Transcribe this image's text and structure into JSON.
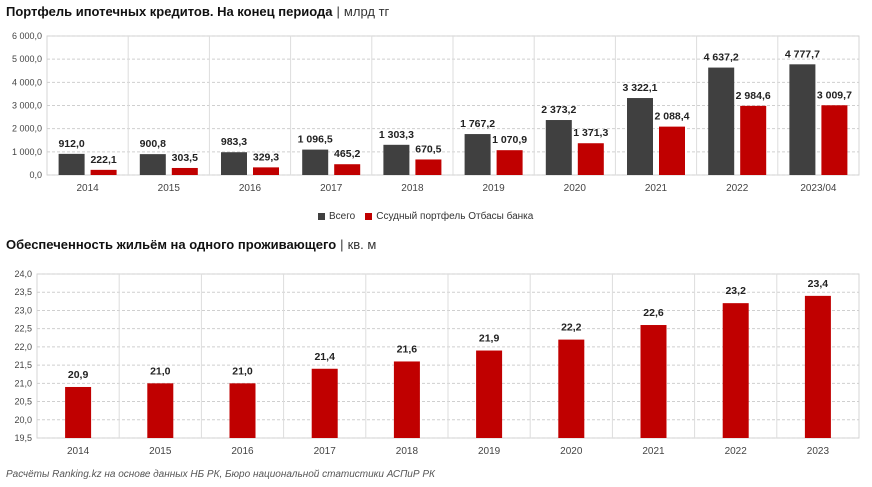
{
  "colors": {
    "dark": "#404040",
    "red": "#c00000",
    "grid": "#cfcfcf"
  },
  "chart1": {
    "title": "Портфель ипотечных кредитов. На конец периода",
    "separator": "|",
    "unit": "млрд тг"
  },
  "chart2": {
    "title": "Обеспеченность жильём на одного проживающего",
    "separator": "|",
    "unit": "кв. м"
  },
  "footer": "Расчёты Ranking.kz на основе данных НБ РК, Бюро национальной статистики АСПиР РК",
  "chart_data": [
    {
      "type": "bar",
      "title": "Портфель ипотечных кредитов. На конец периода",
      "categories": [
        "2014",
        "2015",
        "2016",
        "2017",
        "2018",
        "2019",
        "2020",
        "2021",
        "2022",
        "2023/04"
      ],
      "series": [
        {
          "name": "Всего",
          "values": [
            912.0,
            900.8,
            983.3,
            1096.5,
            1303.3,
            1767.2,
            2373.2,
            3322.1,
            4637.2,
            4777.7
          ],
          "labels": [
            "912,0",
            "900,8",
            "983,3",
            "1 096,5",
            "1 303,3",
            "1 767,2",
            "2 373,2",
            "3 322,1",
            "4 637,2",
            "4 777,7"
          ]
        },
        {
          "name": "Ссудный портфель Отбасы банка",
          "values": [
            222.1,
            303.5,
            329.3,
            465.2,
            670.5,
            1070.9,
            1371.3,
            2088.4,
            2984.6,
            3009.7
          ],
          "labels": [
            "222,1",
            "303,5",
            "329,3",
            "465,2",
            "670,5",
            "1 070,9",
            "1 371,3",
            "2 088,4",
            "2 984,6",
            "3 009,7"
          ]
        }
      ],
      "yticks": [
        "0,0",
        "1 000,0",
        "2 000,0",
        "3 000,0",
        "4 000,0",
        "5 000,0",
        "6 000,0"
      ],
      "ylim": [
        0,
        6000
      ],
      "grid": true,
      "legend": "bottom"
    },
    {
      "type": "bar",
      "title": "Обеспеченность жильём на одного проживающего",
      "categories": [
        "2014",
        "2015",
        "2016",
        "2017",
        "2018",
        "2019",
        "2020",
        "2021",
        "2022",
        "2023"
      ],
      "values": [
        20.9,
        21.0,
        21.0,
        21.4,
        21.6,
        21.9,
        22.2,
        22.6,
        23.2,
        23.4
      ],
      "labels": [
        "20,9",
        "21,0",
        "21,0",
        "21,4",
        "21,6",
        "21,9",
        "22,2",
        "22,6",
        "23,2",
        "23,4"
      ],
      "yticks": [
        "19,5",
        "20,0",
        "20,5",
        "21,0",
        "21,5",
        "22,0",
        "22,5",
        "23,0",
        "23,5",
        "24,0"
      ],
      "ylim": [
        19.5,
        24.0
      ],
      "grid": true
    }
  ]
}
